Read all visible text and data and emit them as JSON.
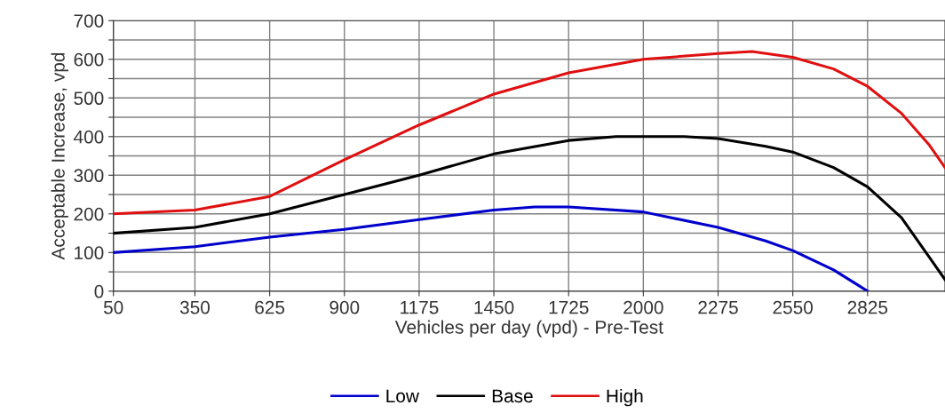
{
  "chart_data": {
    "type": "line",
    "xlabel": "Vehicles per day (vpd) - Pre-Test",
    "ylabel": "Acceptable Increase, vpd",
    "xlim": [
      50,
      3110
    ],
    "xticks": [
      50,
      350,
      625,
      900,
      1175,
      1450,
      1725,
      2000,
      2275,
      2550,
      2825
    ],
    "ylim": [
      0,
      700
    ],
    "yticks": [
      0,
      {
        "value": 50,
        "label": null
      },
      100,
      {
        "value": 150,
        "label": null
      },
      200,
      {
        "value": 250,
        "label": null
      },
      300,
      {
        "value": 350,
        "label": null
      },
      400,
      {
        "value": 450,
        "label": null
      },
      500,
      {
        "value": 550,
        "label": null
      },
      600,
      {
        "value": 650,
        "label": null
      },
      700
    ],
    "grid": true,
    "legend": "bottom",
    "line_style": "solid",
    "series": [
      {
        "name": "Low",
        "color": "#0000cc",
        "x": [
          50,
          350,
          625,
          900,
          1175,
          1450,
          1600,
          1725,
          2000,
          2275,
          2450,
          2550,
          2700,
          2780,
          2825
        ],
        "values": [
          100,
          115,
          140,
          160,
          185,
          210,
          218,
          218,
          205,
          165,
          130,
          105,
          55,
          20,
          0
        ]
      },
      {
        "name": "Base",
        "color": "#000000",
        "x": [
          50,
          350,
          625,
          900,
          1175,
          1450,
          1725,
          1900,
          2150,
          2275,
          2450,
          2550,
          2700,
          2825,
          2950,
          3050,
          3110
        ],
        "values": [
          150,
          165,
          200,
          250,
          300,
          355,
          390,
          400,
          400,
          395,
          375,
          360,
          320,
          270,
          190,
          90,
          30
        ]
      },
      {
        "name": "High",
        "color": "#e01010",
        "x": [
          50,
          350,
          625,
          900,
          1175,
          1450,
          1725,
          2000,
          2275,
          2400,
          2550,
          2700,
          2825,
          2950,
          3050,
          3110
        ],
        "values": [
          200,
          210,
          245,
          340,
          430,
          510,
          565,
          600,
          615,
          620,
          605,
          575,
          530,
          460,
          380,
          320
        ]
      }
    ]
  }
}
